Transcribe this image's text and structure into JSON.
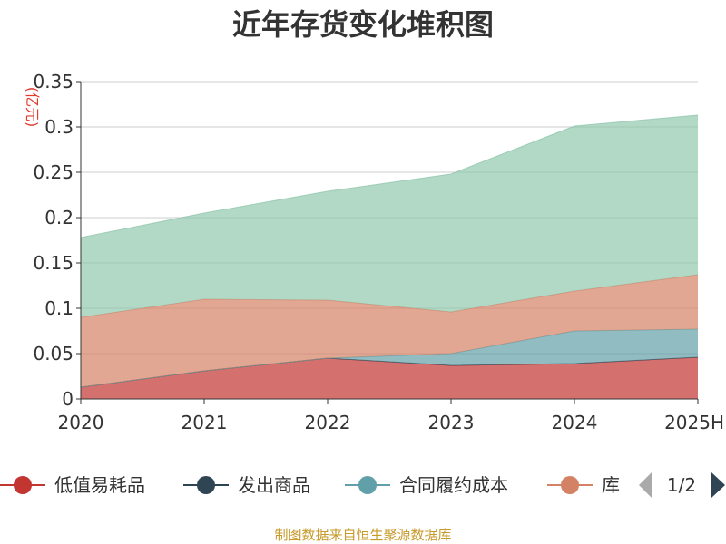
{
  "chart_data": {
    "type": "area",
    "stacked": true,
    "title": "近年存货变化堆积图",
    "unit_label": "(亿元)",
    "categories": [
      "2020",
      "2021",
      "2022",
      "2023",
      "2024",
      "2025H"
    ],
    "ylim": [
      0,
      0.35
    ],
    "yticks": [
      {
        "value": 0,
        "label": "0"
      },
      {
        "value": 0.05,
        "label": "0.05"
      },
      {
        "value": 0.1,
        "label": "0.1"
      },
      {
        "value": 0.15,
        "label": "0.15"
      },
      {
        "value": 0.2,
        "label": "0.2"
      },
      {
        "value": 0.25,
        "label": "0.25"
      },
      {
        "value": 0.3,
        "label": "0.3"
      },
      {
        "value": 0.35,
        "label": "0.35"
      }
    ],
    "grid": true,
    "legend_placement": "bottom",
    "series": [
      {
        "name": "低值易耗品",
        "color": "#c23531",
        "values": [
          0.013,
          0.031,
          0.045,
          0.037,
          0.039,
          0.046
        ]
      },
      {
        "name": "发出商品",
        "color": "#2f4554",
        "values": [
          0,
          0,
          0,
          0,
          0,
          0
        ]
      },
      {
        "name": "合同履约成本",
        "color": "#61a0a8",
        "values": [
          0,
          0,
          0,
          0.013,
          0.036,
          0.031
        ]
      },
      {
        "name": "库存商品",
        "color": "#d48265",
        "values": [
          0.077,
          0.079,
          0.064,
          0.046,
          0.044,
          0.06
        ]
      },
      {
        "name": "",
        "color": "#91c7ae",
        "values": [
          0.088,
          0.095,
          0.12,
          0.152,
          0.182,
          0.176
        ]
      }
    ],
    "legend": {
      "items": [
        {
          "label": "低值易耗品",
          "color": "#c23531"
        },
        {
          "label": "发出商品",
          "color": "#2f4554"
        },
        {
          "label": "合同履约成本",
          "color": "#61a0a8"
        },
        {
          "label": "库",
          "color": "#d48265"
        }
      ],
      "page": "1/2"
    },
    "source": "制图数据来自恒生聚源数据库"
  }
}
